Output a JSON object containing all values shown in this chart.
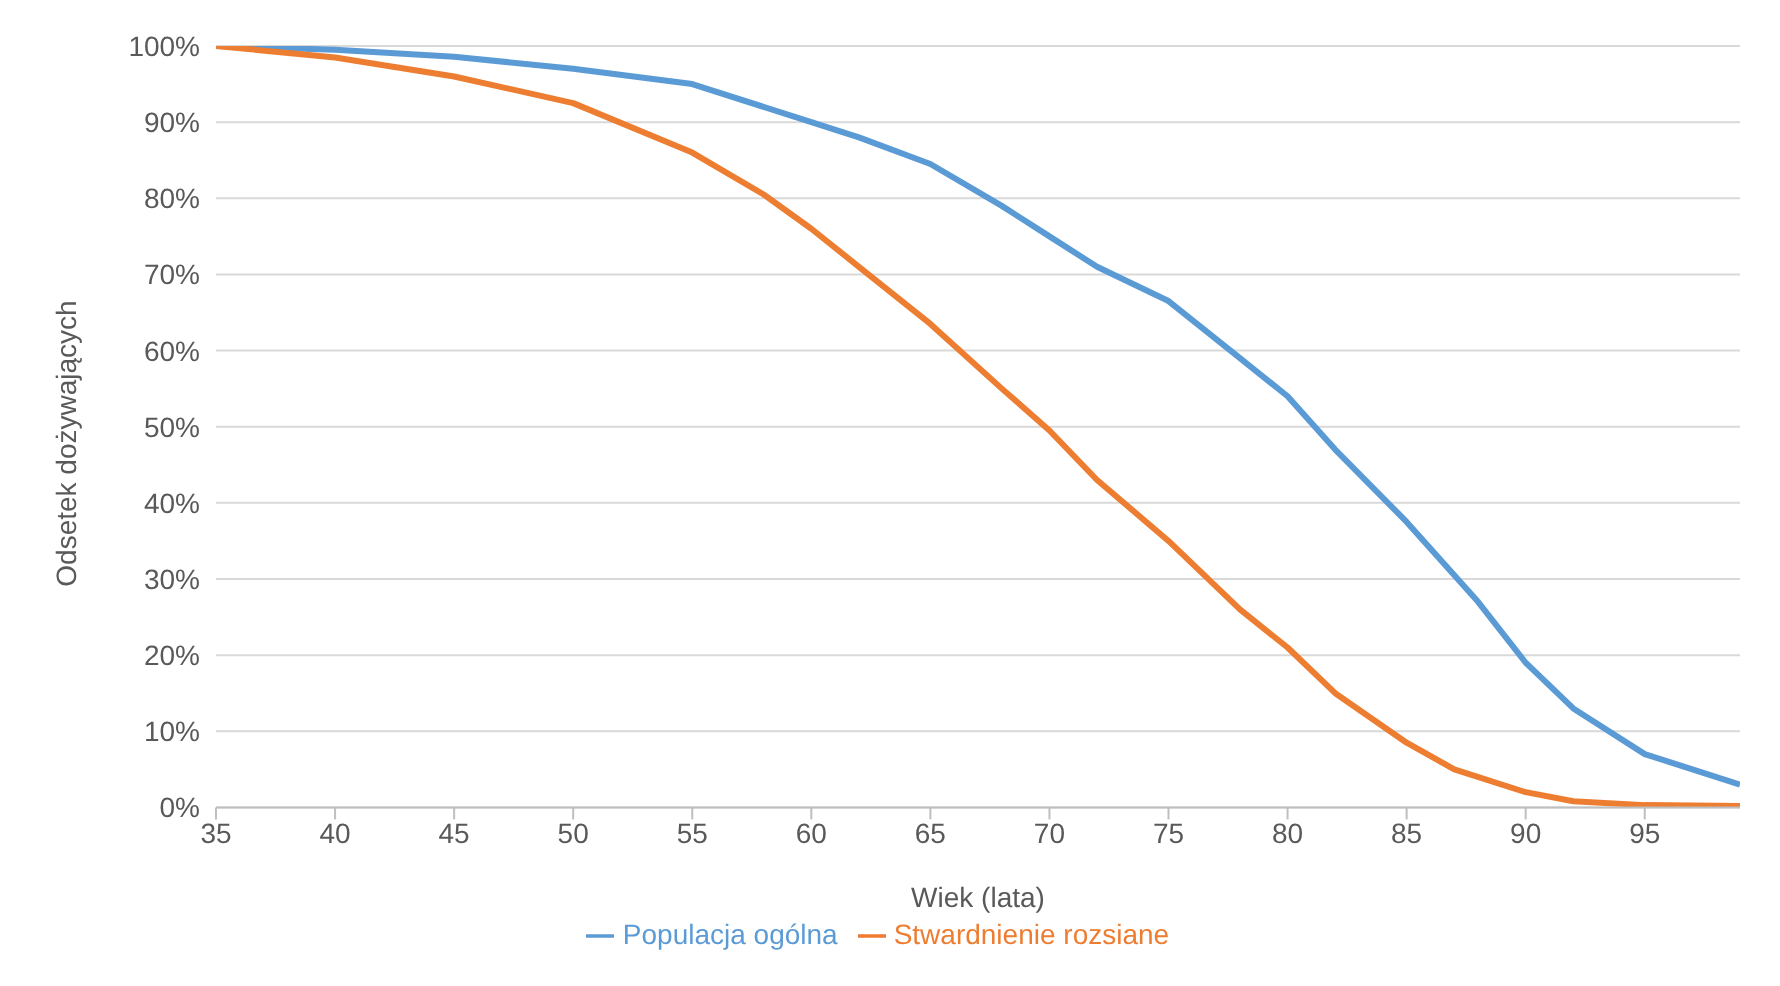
{
  "chart_data": {
    "type": "line",
    "xlabel": "Wiek (lata)",
    "ylabel": "Odsetek dożywających",
    "xlim": [
      35,
      99
    ],
    "xticks": [
      35,
      40,
      45,
      50,
      55,
      60,
      65,
      70,
      75,
      80,
      85,
      90,
      95
    ],
    "ylim": [
      0,
      100
    ],
    "yticks": [
      {
        "value": 0,
        "label": "0%"
      },
      {
        "value": 10,
        "label": "10%"
      },
      {
        "value": 20,
        "label": "20%"
      },
      {
        "value": 30,
        "label": "30%"
      },
      {
        "value": 40,
        "label": "40%"
      },
      {
        "value": 50,
        "label": "50%"
      },
      {
        "value": 60,
        "label": "60%"
      },
      {
        "value": 70,
        "label": "70%"
      },
      {
        "value": 80,
        "label": "80%"
      },
      {
        "value": 90,
        "label": "90%"
      },
      {
        "value": 100,
        "label": "100%"
      }
    ],
    "grid": "y",
    "legend": "bottom",
    "marker": "none",
    "line_style": "solid",
    "series": [
      {
        "name": "Populacja ogólna",
        "color": "#5b9bd5",
        "x": [
          35,
          40,
          45,
          50,
          55,
          60,
          62,
          65,
          68,
          70,
          72,
          75,
          78,
          80,
          82,
          85,
          88,
          90,
          92,
          95,
          97,
          99
        ],
        "values": [
          100,
          99.5,
          98.6,
          97,
          95,
          90,
          88,
          84.5,
          79,
          75,
          71,
          66.5,
          59,
          54,
          47,
          37.5,
          27,
          19,
          13,
          7,
          5,
          3
        ]
      },
      {
        "name": "Stwardnienie rozsiane",
        "color": "#ed7d31",
        "x": [
          35,
          40,
          45,
          50,
          55,
          58,
          60,
          62,
          65,
          68,
          70,
          72,
          75,
          78,
          80,
          82,
          85,
          87,
          90,
          92,
          95,
          99
        ],
        "values": [
          100,
          98.5,
          96,
          92.5,
          86,
          80.5,
          76,
          71,
          63.5,
          55,
          49.5,
          43,
          35,
          26,
          21,
          15,
          8.5,
          5,
          2,
          0.8,
          0.3,
          0.2
        ]
      }
    ]
  }
}
